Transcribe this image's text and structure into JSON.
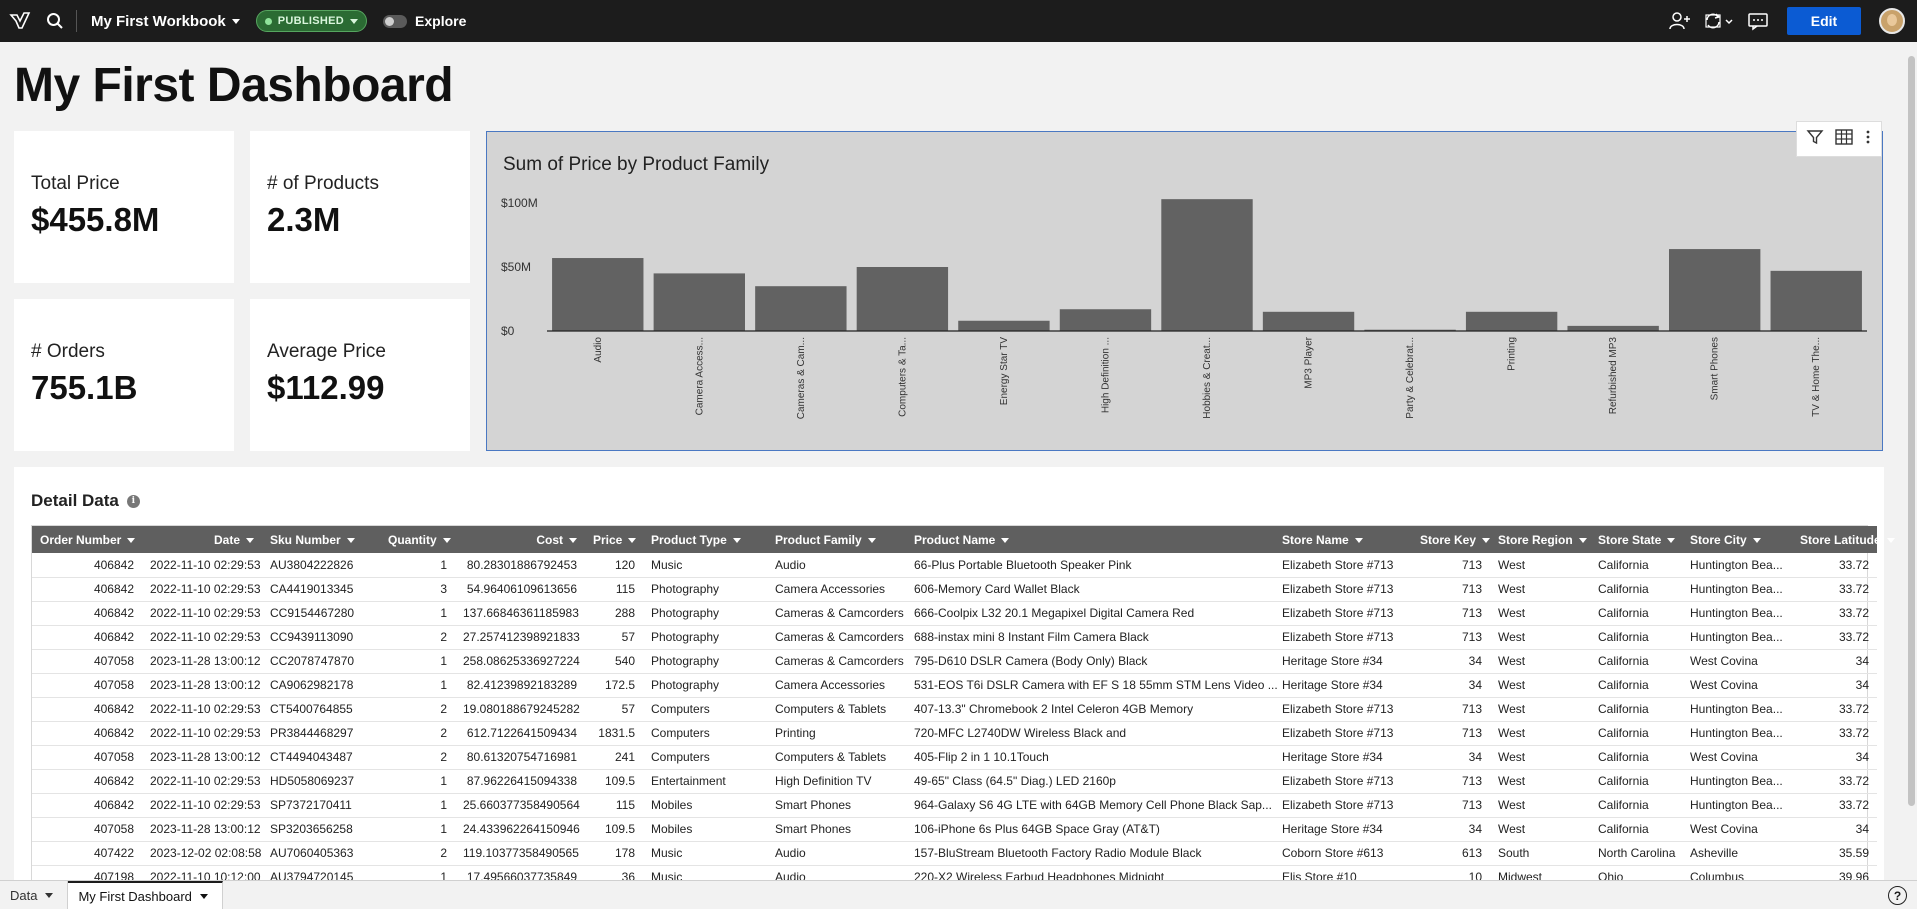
{
  "topbar": {
    "workbook_title": "My First Workbook",
    "status_badge": "PUBLISHED",
    "explore_label": "Explore",
    "edit_label": "Edit"
  },
  "page_title": "My First Dashboard",
  "kpis": [
    {
      "label": "Total Price",
      "value": "$455.8M"
    },
    {
      "label": "# of Products",
      "value": "2.3M"
    },
    {
      "label": "# Orders",
      "value": "755.1B"
    },
    {
      "label": "Average Price",
      "value": "$112.99"
    }
  ],
  "chart_data": {
    "type": "bar",
    "title": "Sum of Price by Product Family",
    "categories": [
      "Audio",
      "Camera Access...",
      "Cameras & Cam...",
      "Computers & Ta...",
      "Energy Star TV",
      "High Definition ...",
      "Hobbies & Creat...",
      "MP3 Player",
      "Party & Celebrat...",
      "Printing",
      "Refurbished MP3",
      "Smart Phones",
      "TV & Home The..."
    ],
    "values": [
      57,
      45,
      35,
      50,
      8,
      17,
      103,
      15,
      1,
      15,
      4,
      64,
      47
    ],
    "ylim": [
      0,
      100
    ],
    "yticks": [
      "$0",
      "$50M",
      "$100M"
    ],
    "ytick_values": [
      0,
      50,
      100
    ],
    "xlabel": "",
    "ylabel": "",
    "bar_color": "#626262"
  },
  "detail": {
    "title": "Detail Data",
    "columns": [
      "Order Number",
      "Date",
      "Sku Number",
      "Quantity",
      "Cost",
      "Price",
      "Product Type",
      "Product Family",
      "Product Name",
      "Store Name",
      "Store Key",
      "Store Region",
      "Store State",
      "Store City",
      "Store Latitude"
    ],
    "rows": [
      [
        "406842",
        "2022-11-10 02:29:53",
        "AU3804222826",
        "1",
        "80.28301886792453",
        "120",
        "Music",
        "Audio",
        "66-Plus Portable Bluetooth Speaker   Pink",
        "Elizabeth Store #713",
        "713",
        "West",
        "California",
        "Huntington Bea...",
        "33.72"
      ],
      [
        "406842",
        "2022-11-10 02:29:53",
        "CA4419013345",
        "3",
        "54.96406109613656",
        "115",
        "Photography",
        "Camera Accessories",
        "606-Memory Card Wallet   Black",
        "Elizabeth Store #713",
        "713",
        "West",
        "California",
        "Huntington Bea...",
        "33.72"
      ],
      [
        "406842",
        "2022-11-10 02:29:53",
        "CC9154467280",
        "1",
        "137.66846361185983",
        "288",
        "Photography",
        "Cameras & Camcorders",
        "666-Coolpix L32 20.1 Megapixel Digital Camera   Red",
        "Elizabeth Store #713",
        "713",
        "West",
        "California",
        "Huntington Bea...",
        "33.72"
      ],
      [
        "406842",
        "2022-11-10 02:29:53",
        "CC9439113090",
        "2",
        "27.257412398921833",
        "57",
        "Photography",
        "Cameras & Camcorders",
        "688-instax mini 8 Instant Film Camera   Black",
        "Elizabeth Store #713",
        "713",
        "West",
        "California",
        "Huntington Bea...",
        "33.72"
      ],
      [
        "407058",
        "2023-11-28 13:00:12",
        "CC2078747870",
        "1",
        "258.08625336927224",
        "540",
        "Photography",
        "Cameras & Camcorders",
        "795-D610 DSLR Camera (Body Only)   Black",
        "Heritage Store #34",
        "34",
        "West",
        "California",
        "West Covina",
        "34"
      ],
      [
        "407058",
        "2023-11-28 13:00:12",
        "CA9062982178",
        "1",
        "82.41239892183289",
        "172.5",
        "Photography",
        "Camera Accessories",
        "531-EOS T6i DSLR Camera with EF S 18 55mm STM Lens Video ...",
        "Heritage Store #34",
        "34",
        "West",
        "California",
        "West Covina",
        "34"
      ],
      [
        "406842",
        "2022-11-10 02:29:53",
        "CT5400764855",
        "2",
        "19.080188679245282",
        "57",
        "Computers",
        "Computers & Tablets",
        "407-13.3\" Chromebook 2   Intel Celeron   4GB Memory",
        "Elizabeth Store #713",
        "713",
        "West",
        "California",
        "Huntington Bea...",
        "33.72"
      ],
      [
        "406842",
        "2022-11-10 02:29:53",
        "PR3844468297",
        "2",
        "612.7122641509434",
        "1831.5",
        "Computers",
        "Printing",
        "720-MFC L2740DW Wireless Black and",
        "Elizabeth Store #713",
        "713",
        "West",
        "California",
        "Huntington Bea...",
        "33.72"
      ],
      [
        "407058",
        "2023-11-28 13:00:12",
        "CT4494043487",
        "2",
        "80.61320754716981",
        "241",
        "Computers",
        "Computers & Tablets",
        "405-Flip 2 in 1 10.1Touch",
        "Heritage Store #34",
        "34",
        "West",
        "California",
        "West Covina",
        "34"
      ],
      [
        "406842",
        "2022-11-10 02:29:53",
        "HD5058069237",
        "1",
        "87.96226415094338",
        "109.5",
        "Entertainment",
        "High Definition TV",
        "49-65\" Class (64.5\" Diag.)   LED   2160p",
        "Elizabeth Store #713",
        "713",
        "West",
        "California",
        "Huntington Bea...",
        "33.72"
      ],
      [
        "406842",
        "2022-11-10 02:29:53",
        "SP7372170411",
        "1",
        "25.660377358490564",
        "115",
        "Mobiles",
        "Smart Phones",
        "964-Galaxy S6 4G LTE with 64GB Memory Cell Phone   Black Sap...",
        "Elizabeth Store #713",
        "713",
        "West",
        "California",
        "Huntington Bea...",
        "33.72"
      ],
      [
        "407058",
        "2023-11-28 13:00:12",
        "SP3203656258",
        "1",
        "24.433962264150946",
        "109.5",
        "Mobiles",
        "Smart Phones",
        "106-iPhone 6s Plus 64GB   Space Gray (AT&T)",
        "Heritage Store #34",
        "34",
        "West",
        "California",
        "West Covina",
        "34"
      ],
      [
        "407422",
        "2023-12-02 02:08:58",
        "AU7060405363",
        "2",
        "119.10377358490565",
        "178",
        "Music",
        "Audio",
        "157-BluStream Bluetooth Factory Radio Module   Black",
        "Coborn Store #613",
        "613",
        "South",
        "North Carolina",
        "Asheville",
        "35.59"
      ],
      [
        "407198",
        "2022-11-10 10:12:00",
        "AU3794720145",
        "1",
        "17.49566037735849",
        "36",
        "Music",
        "Audio",
        "220-X2 Wireless Earbud Headphones   Midnight",
        "Elis Store #10",
        "10",
        "Midwest",
        "Ohio",
        "Columbus",
        "39.96"
      ]
    ]
  },
  "tabs": [
    {
      "label": "Data"
    },
    {
      "label": "My First Dashboard"
    }
  ],
  "help_label": "?"
}
